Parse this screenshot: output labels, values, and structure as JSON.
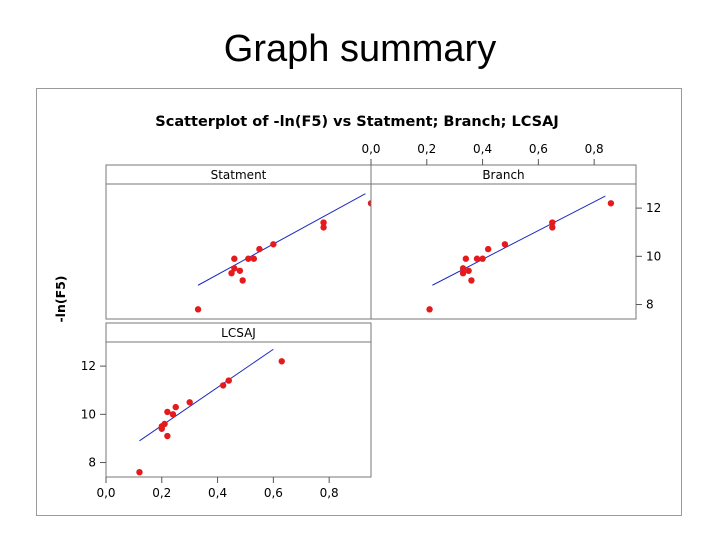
{
  "slide": {
    "title": "Graph summary"
  },
  "chart_data": {
    "type": "scatter",
    "title": "Scatterplot of -ln(F5) vs Statment; Branch; LCSAJ",
    "ylabel": "-ln(F5)",
    "xlim": [
      0.0,
      0.95
    ],
    "ylim": [
      7.4,
      13.0
    ],
    "x_ticks": [
      0.0,
      0.2,
      0.4,
      0.6,
      0.8
    ],
    "x_tick_labels": [
      "0,0",
      "0,2",
      "0,4",
      "0,6",
      "0,8"
    ],
    "y_ticks": [
      8,
      10,
      12
    ],
    "y_tick_labels": [
      "8",
      "10",
      "12"
    ],
    "marker_color": "#e41a1c",
    "fit_line_color": "#1f2bbf",
    "panels": [
      {
        "name": "Statment",
        "points": [
          {
            "x": 0.33,
            "y": 7.8
          },
          {
            "x": 0.45,
            "y": 9.3
          },
          {
            "x": 0.46,
            "y": 9.5
          },
          {
            "x": 0.48,
            "y": 9.4
          },
          {
            "x": 0.49,
            "y": 9.0
          },
          {
            "x": 0.46,
            "y": 9.9
          },
          {
            "x": 0.51,
            "y": 9.9
          },
          {
            "x": 0.53,
            "y": 9.9
          },
          {
            "x": 0.55,
            "y": 10.3
          },
          {
            "x": 0.6,
            "y": 10.5
          },
          {
            "x": 0.78,
            "y": 11.2
          },
          {
            "x": 0.78,
            "y": 11.4
          },
          {
            "x": 0.95,
            "y": 12.2
          }
        ],
        "fit": {
          "x1": 0.33,
          "y1": 8.8,
          "x2": 0.93,
          "y2": 12.6
        }
      },
      {
        "name": "Branch",
        "points": [
          {
            "x": 0.21,
            "y": 7.8
          },
          {
            "x": 0.33,
            "y": 9.3
          },
          {
            "x": 0.33,
            "y": 9.5
          },
          {
            "x": 0.35,
            "y": 9.4
          },
          {
            "x": 0.36,
            "y": 9.0
          },
          {
            "x": 0.34,
            "y": 9.9
          },
          {
            "x": 0.38,
            "y": 9.9
          },
          {
            "x": 0.4,
            "y": 9.9
          },
          {
            "x": 0.42,
            "y": 10.3
          },
          {
            "x": 0.48,
            "y": 10.5
          },
          {
            "x": 0.65,
            "y": 11.2
          },
          {
            "x": 0.65,
            "y": 11.4
          },
          {
            "x": 0.86,
            "y": 12.2
          }
        ],
        "fit": {
          "x1": 0.22,
          "y1": 8.8,
          "x2": 0.84,
          "y2": 12.5
        }
      },
      {
        "name": "LCSAJ",
        "points": [
          {
            "x": 0.12,
            "y": 7.6
          },
          {
            "x": 0.2,
            "y": 9.4
          },
          {
            "x": 0.2,
            "y": 9.5
          },
          {
            "x": 0.21,
            "y": 9.6
          },
          {
            "x": 0.22,
            "y": 9.1
          },
          {
            "x": 0.22,
            "y": 10.1
          },
          {
            "x": 0.24,
            "y": 10.0
          },
          {
            "x": 0.25,
            "y": 10.3
          },
          {
            "x": 0.3,
            "y": 10.5
          },
          {
            "x": 0.42,
            "y": 11.2
          },
          {
            "x": 0.44,
            "y": 11.4
          },
          {
            "x": 0.63,
            "y": 12.2
          }
        ],
        "fit": {
          "x1": 0.12,
          "y1": 8.9,
          "x2": 0.6,
          "y2": 12.7
        }
      }
    ]
  }
}
